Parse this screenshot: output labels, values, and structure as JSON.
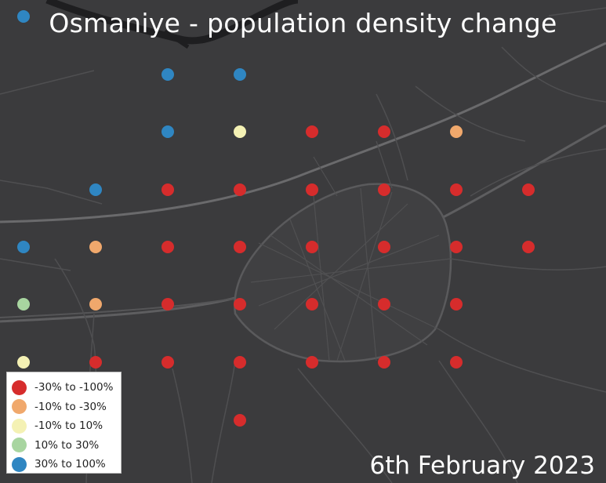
{
  "title": "Osmaniye - population density change",
  "date": "6th February 2023",
  "legend": {
    "items": [
      {
        "label": "-30% to -100%",
        "color": "#d62c2c"
      },
      {
        "label": "-10% to -30%",
        "color": "#f0a86c"
      },
      {
        "label": "-10% to 10%",
        "color": "#f4f1b4"
      },
      {
        "label": "10% to 30%",
        "color": "#a8d5a0"
      },
      {
        "label": "30% to 100%",
        "color": "#2f86c2"
      }
    ]
  },
  "map": {
    "background": "#3b3b3d",
    "dot_classes_by_row": [
      [
        "30% to 100%"
      ],
      [
        "30% to 100%",
        "30% to 100%"
      ],
      [
        "30% to 100%",
        "-10% to 10%",
        "-30% to -100%",
        "-30% to -100%",
        "-10% to -30%"
      ],
      [
        "30% to 100%",
        "-30% to -100%",
        "-30% to -100%",
        "-30% to -100%",
        "-30% to -100%",
        "-30% to -100%",
        "-30% to -100%"
      ],
      [
        "30% to 100%",
        "-10% to -30%",
        "-30% to -100%",
        "-30% to -100%",
        "-30% to -100%",
        "-30% to -100%",
        "-30% to -100%",
        "-30% to -100%"
      ],
      [
        "10% to 30%",
        "-10% to -30%",
        "-30% to -100%",
        "-30% to -100%",
        "-30% to -100%",
        "-30% to -100%",
        "-30% to -100%"
      ],
      [
        "-10% to 10%",
        "-30% to -100%",
        "-30% to -100%",
        "-30% to -100%",
        "-30% to -100%",
        "-30% to -100%",
        "-30% to -100%"
      ],
      [
        "-30% to -100%"
      ]
    ]
  }
}
